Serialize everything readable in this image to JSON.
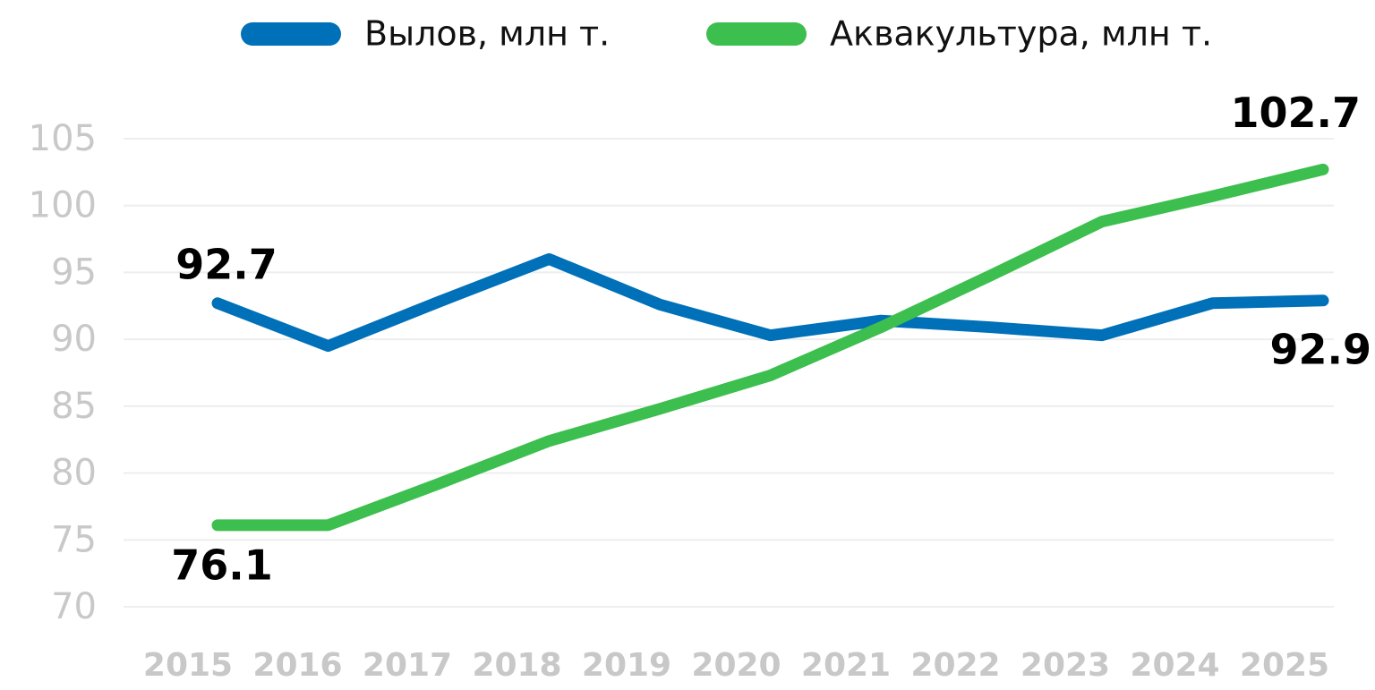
{
  "chart_data": {
    "type": "line",
    "categories": [
      "2015",
      "2016",
      "2017",
      "2018",
      "2019",
      "2020",
      "2021",
      "2022",
      "2023",
      "2024",
      "2025"
    ],
    "series": [
      {
        "name": "Вылов, млн т.",
        "color": "#0070b8",
        "values": [
          92.7,
          89.5,
          92.8,
          96.0,
          92.6,
          90.3,
          91.4,
          90.9,
          90.3,
          92.7,
          92.9
        ]
      },
      {
        "name": "Аквакультура, млн т.",
        "color": "#3cbf4e",
        "values": [
          76.1,
          76.1,
          79.2,
          82.4,
          84.8,
          87.3,
          90.9,
          94.8,
          98.8,
          100.7,
          102.7
        ]
      }
    ],
    "ylim": [
      70,
      105
    ],
    "yticks": [
      70,
      75,
      80,
      85,
      90,
      95,
      100,
      105
    ],
    "grid": true
  }
}
